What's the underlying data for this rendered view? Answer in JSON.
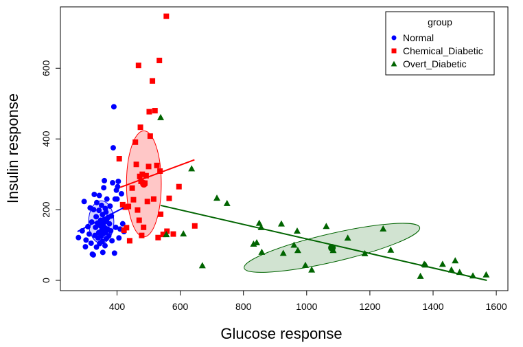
{
  "chart_data": {
    "type": "scatter",
    "xlabel": "Glucose response",
    "ylabel": "Insulin response",
    "xlim": [
      200,
      1600
    ],
    "ylim": [
      0,
      750
    ],
    "x_ticks": [
      400,
      600,
      800,
      1000,
      1200,
      1400,
      1600
    ],
    "y_ticks": [
      0,
      200,
      400,
      600
    ],
    "legend": {
      "title": "group",
      "position": "top-right"
    },
    "series": [
      {
        "name": "Normal",
        "color": "#0000ff",
        "marker": "circle",
        "points": [
          [
            278,
            121
          ],
          [
            290,
            140
          ],
          [
            296,
            223
          ],
          [
            300,
            95
          ],
          [
            302,
            114
          ],
          [
            308,
            152
          ],
          [
            312,
            131
          ],
          [
            315,
            205
          ],
          [
            318,
            105
          ],
          [
            320,
            165
          ],
          [
            322,
            74
          ],
          [
            325,
            72
          ],
          [
            326,
            200
          ],
          [
            328,
            243
          ],
          [
            330,
            127
          ],
          [
            332,
            150
          ],
          [
            334,
            180
          ],
          [
            335,
            94
          ],
          [
            336,
            220
          ],
          [
            338,
            162
          ],
          [
            340,
            120
          ],
          [
            342,
            135
          ],
          [
            343,
            198
          ],
          [
            344,
            240
          ],
          [
            345,
            104
          ],
          [
            346,
            155
          ],
          [
            348,
            170
          ],
          [
            350,
            125
          ],
          [
            351,
            212
          ],
          [
            352,
            143
          ],
          [
            353,
            110
          ],
          [
            354,
            186
          ],
          [
            355,
            79
          ],
          [
            356,
            158
          ],
          [
            357,
            132
          ],
          [
            358,
            262
          ],
          [
            359,
            172
          ],
          [
            360,
            282
          ],
          [
            361,
            149
          ],
          [
            362,
            98
          ],
          [
            363,
            203
          ],
          [
            364,
            136
          ],
          [
            365,
            193
          ],
          [
            366,
            118
          ],
          [
            367,
            167
          ],
          [
            368,
            230
          ],
          [
            370,
            145
          ],
          [
            372,
            178
          ],
          [
            374,
            126
          ],
          [
            376,
            160
          ],
          [
            378,
            210
          ],
          [
            380,
            140
          ],
          [
            382,
            182
          ],
          [
            384,
            112
          ],
          [
            386,
            276
          ],
          [
            388,
            375
          ],
          [
            390,
            491
          ],
          [
            392,
            77
          ],
          [
            394,
            230
          ],
          [
            396,
            150
          ],
          [
            398,
            255
          ],
          [
            400,
            230
          ],
          [
            402,
            265
          ],
          [
            404,
            280
          ],
          [
            406,
            120
          ],
          [
            410,
            145
          ],
          [
            414,
            245
          ],
          [
            418,
            160
          ],
          [
            422,
            138
          ]
        ],
        "centroid": [
          350,
          165
        ],
        "fit_line": [
          [
            275,
            138
          ],
          [
            420,
            205
          ]
        ],
        "ellipse": {
          "center": [
            350,
            165
          ],
          "rx": 40,
          "ry": 60,
          "angle": 0
        }
      },
      {
        "name": "Chemical_Diabetic",
        "color": "#ff0000",
        "marker": "square",
        "points": [
          [
            407,
            344
          ],
          [
            418,
            214
          ],
          [
            422,
            142
          ],
          [
            426,
            207
          ],
          [
            430,
            149
          ],
          [
            436,
            209
          ],
          [
            440,
            112
          ],
          [
            448,
            261
          ],
          [
            452,
            228
          ],
          [
            458,
            391
          ],
          [
            461,
            328
          ],
          [
            465,
            199
          ],
          [
            468,
            608
          ],
          [
            470,
            170
          ],
          [
            472,
            294
          ],
          [
            474,
            433
          ],
          [
            476,
            280
          ],
          [
            478,
            127
          ],
          [
            480,
            300
          ],
          [
            484,
            150
          ],
          [
            488,
            275
          ],
          [
            492,
            296
          ],
          [
            496,
            223
          ],
          [
            500,
            322
          ],
          [
            502,
            477
          ],
          [
            505,
            408
          ],
          [
            512,
            564
          ],
          [
            516,
            230
          ],
          [
            520,
            480
          ],
          [
            526,
            325
          ],
          [
            530,
            121
          ],
          [
            534,
            622
          ],
          [
            536,
            309
          ],
          [
            538,
            187
          ],
          [
            546,
            130
          ],
          [
            556,
            747
          ],
          [
            558,
            139
          ],
          [
            565,
            232
          ],
          [
            578,
            131
          ],
          [
            596,
            265
          ],
          [
            646,
            154
          ]
        ],
        "centroid": [
          485,
          273
        ],
        "fit_line": [
          [
            410,
            263
          ],
          [
            645,
            341
          ]
        ],
        "ellipse": {
          "center": [
            485,
            273
          ],
          "rx": 55,
          "ry": 150,
          "angle": 0
        }
      },
      {
        "name": "Overt_Diabetic",
        "color": "#006400",
        "marker": "triangle",
        "points": [
          [
            538,
            461
          ],
          [
            556,
            130
          ],
          [
            610,
            132
          ],
          [
            636,
            316
          ],
          [
            670,
            42
          ],
          [
            716,
            233
          ],
          [
            748,
            218
          ],
          [
            832,
            103
          ],
          [
            842,
            107
          ],
          [
            850,
            162
          ],
          [
            856,
            150
          ],
          [
            858,
            80
          ],
          [
            920,
            160
          ],
          [
            926,
            77
          ],
          [
            960,
            100
          ],
          [
            970,
            140
          ],
          [
            972,
            85
          ],
          [
            996,
            43
          ],
          [
            1016,
            30
          ],
          [
            1062,
            153
          ],
          [
            1084,
            85
          ],
          [
            1130,
            120
          ],
          [
            1184,
            76
          ],
          [
            1242,
            146
          ],
          [
            1266,
            86
          ],
          [
            1360,
            12
          ],
          [
            1372,
            46
          ],
          [
            1376,
            44
          ],
          [
            1430,
            46
          ],
          [
            1458,
            30
          ],
          [
            1470,
            56
          ],
          [
            1484,
            23
          ],
          [
            1526,
            13
          ],
          [
            1568,
            16
          ]
        ],
        "centroid": [
          1080,
          92
        ],
        "fit_line": [
          [
            538,
            212
          ],
          [
            1570,
            0
          ]
        ],
        "ellipse": {
          "center": [
            1080,
            92
          ],
          "rx": 285,
          "ry": 40,
          "angle": -13
        }
      }
    ]
  }
}
